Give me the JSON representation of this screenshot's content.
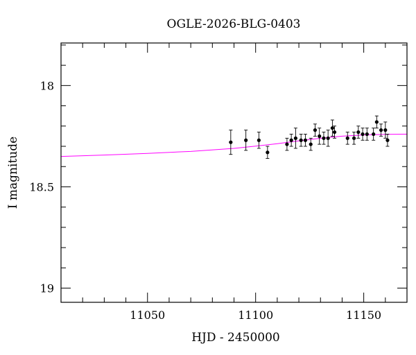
{
  "chart_data": {
    "type": "scatter",
    "title": "OGLE-2026-BLG-0403",
    "xlabel": "HJD - 2450000",
    "ylabel": "I magnitude",
    "xlim": [
      11010,
      11170
    ],
    "ylim": [
      19.07,
      17.79
    ],
    "y_inverted": true,
    "xticks_major": [
      11050,
      11100,
      11150
    ],
    "xticks_minor_step": 10,
    "yticks_major": [
      18,
      18.5,
      19
    ],
    "ytick_labels": [
      "18",
      "18.5",
      "19"
    ],
    "yticks_minor_step": 0.1,
    "grid": false,
    "legend": "none",
    "colors": {
      "points": "#000000",
      "model": "#ff00ff"
    },
    "series": [
      {
        "type": "scatter_errorbars",
        "points": [
          {
            "x": 11088.5,
            "y": 18.28,
            "err": 0.06
          },
          {
            "x": 11095.5,
            "y": 18.27,
            "err": 0.05
          },
          {
            "x": 11101.5,
            "y": 18.27,
            "err": 0.04
          },
          {
            "x": 11105.5,
            "y": 18.33,
            "err": 0.03
          },
          {
            "x": 11114.5,
            "y": 18.29,
            "err": 0.03
          },
          {
            "x": 11116.5,
            "y": 18.27,
            "err": 0.03
          },
          {
            "x": 11118.5,
            "y": 18.26,
            "err": 0.05
          },
          {
            "x": 11121.0,
            "y": 18.27,
            "err": 0.03
          },
          {
            "x": 11123.0,
            "y": 18.27,
            "err": 0.03
          },
          {
            "x": 11125.5,
            "y": 18.29,
            "err": 0.03
          },
          {
            "x": 11127.5,
            "y": 18.22,
            "err": 0.03
          },
          {
            "x": 11129.5,
            "y": 18.25,
            "err": 0.04
          },
          {
            "x": 11131.5,
            "y": 18.26,
            "err": 0.03
          },
          {
            "x": 11133.5,
            "y": 18.26,
            "err": 0.04
          },
          {
            "x": 11135.5,
            "y": 18.21,
            "err": 0.04
          },
          {
            "x": 11136.5,
            "y": 18.23,
            "err": 0.03
          },
          {
            "x": 11142.5,
            "y": 18.26,
            "err": 0.03
          },
          {
            "x": 11145.5,
            "y": 18.26,
            "err": 0.03
          },
          {
            "x": 11147.5,
            "y": 18.23,
            "err": 0.03
          },
          {
            "x": 11149.5,
            "y": 18.24,
            "err": 0.03
          },
          {
            "x": 11151.5,
            "y": 18.24,
            "err": 0.03
          },
          {
            "x": 11154.5,
            "y": 18.24,
            "err": 0.03
          },
          {
            "x": 11156.0,
            "y": 18.18,
            "err": 0.03
          },
          {
            "x": 11158.0,
            "y": 18.22,
            "err": 0.03
          },
          {
            "x": 11160.0,
            "y": 18.22,
            "err": 0.04
          },
          {
            "x": 11161.0,
            "y": 18.27,
            "err": 0.03
          }
        ]
      },
      {
        "type": "line",
        "x": [
          11010,
          11030,
          11050,
          11070,
          11090,
          11100,
          11110,
          11120,
          11130,
          11140,
          11150,
          11160,
          11170
        ],
        "y": [
          18.35,
          18.343,
          18.335,
          18.325,
          18.31,
          18.299,
          18.287,
          18.273,
          18.26,
          18.25,
          18.244,
          18.241,
          18.24
        ]
      }
    ]
  }
}
